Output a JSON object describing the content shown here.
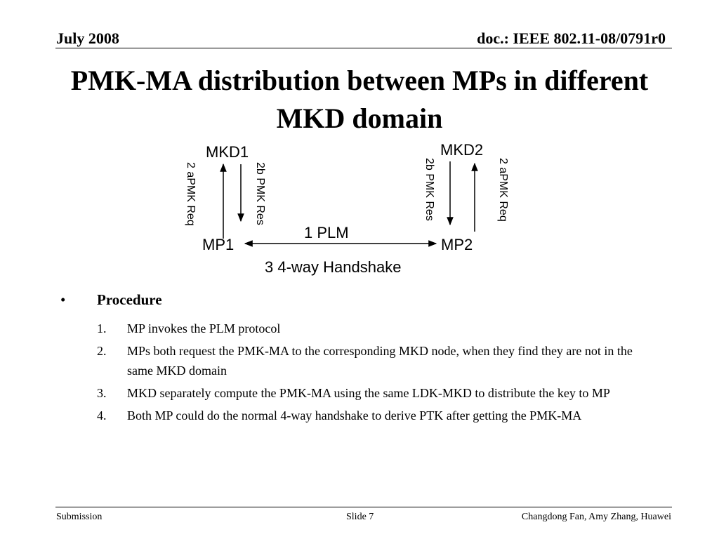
{
  "header": {
    "date": "July 2008",
    "doc_id": "doc.: IEEE 802.11-08/0791r0"
  },
  "title": "PMK-MA distribution between MPs in different MKD domain",
  "diagram": {
    "nodes": {
      "mkd1": "MKD1",
      "mkd2": "MKD2",
      "mp1": "MP1",
      "mp2": "MP2"
    },
    "labels": {
      "left_req": "2 aPMK Req",
      "left_res": "2b PMK Res",
      "right_res": "2b PMK Res",
      "right_req": "2 aPMK Req",
      "plm": "1 PLM",
      "handshake": "3 4-way Handshake"
    }
  },
  "procedure": {
    "bullet": "•",
    "title": "Procedure",
    "steps": [
      {
        "num": "1.",
        "text": "MP invokes the PLM protocol"
      },
      {
        "num": "2.",
        "text": "MPs both request the PMK-MA to the corresponding MKD node, when they find they are not in the same MKD domain"
      },
      {
        "num": "3.",
        "text": "MKD separately compute the PMK-MA using the same LDK-MKD to distribute the key to MP"
      },
      {
        "num": "4.",
        "text": "Both MP could do the normal 4-way handshake to derive PTK after getting the PMK-MA"
      }
    ]
  },
  "footer": {
    "left": "Submission",
    "center": "Slide 7",
    "right": "Changdong Fan, Amy Zhang, Huawei"
  }
}
